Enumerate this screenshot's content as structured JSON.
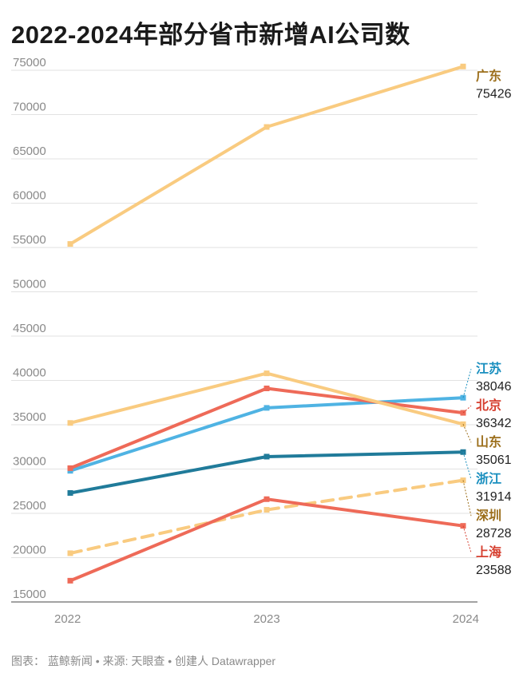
{
  "header": {
    "title": "2022-2024年部分省市新增AI公司数"
  },
  "footer": {
    "source": "图表： 蓝鲸新闻 • 来源: 天眼查 • 创建人 Datawrapper"
  },
  "chart_data": {
    "type": "line",
    "title": "2022-2024年部分省市新增AI公司数",
    "xlabel": "",
    "ylabel": "",
    "x": [
      "2022",
      "2023",
      "2024"
    ],
    "ylim": [
      15000,
      75000
    ],
    "yticks": [
      15000,
      20000,
      25000,
      30000,
      35000,
      40000,
      45000,
      50000,
      55000,
      60000,
      65000,
      70000,
      75000
    ],
    "grid": true,
    "legend": "direct labels at line ends",
    "series": [
      {
        "name": "广东",
        "values": [
          55400,
          68600,
          75426
        ],
        "color": "#f9cb80",
        "label_color": "#9c6f1c",
        "dashed": false,
        "end_label": "75426"
      },
      {
        "name": "江苏",
        "values": [
          29800,
          36900,
          38046
        ],
        "color": "#4fb3e3",
        "label_color": "#1a8fbf",
        "dashed": false,
        "end_label": "38046"
      },
      {
        "name": "北京",
        "values": [
          30100,
          39100,
          36342
        ],
        "color": "#ee6a58",
        "label_color": "#d63f2f",
        "dashed": false,
        "end_label": "36342"
      },
      {
        "name": "山东",
        "values": [
          35200,
          40800,
          35061
        ],
        "color": "#f9cb80",
        "label_color": "#9c6f1c",
        "dashed": false,
        "end_label": "35061"
      },
      {
        "name": "浙江",
        "values": [
          27300,
          31400,
          31914
        ],
        "color": "#207b9a",
        "label_color": "#1a8fbf",
        "dashed": false,
        "end_label": "31914"
      },
      {
        "name": "深圳",
        "values": [
          20500,
          25400,
          28728
        ],
        "color": "#f9cb80",
        "label_color": "#9c6f1c",
        "dashed": true,
        "end_label": "28728"
      },
      {
        "name": "上海",
        "values": [
          17400,
          26600,
          23588
        ],
        "color": "#ee6a58",
        "label_color": "#d63f2f",
        "dashed": false,
        "end_label": "23588"
      }
    ]
  }
}
